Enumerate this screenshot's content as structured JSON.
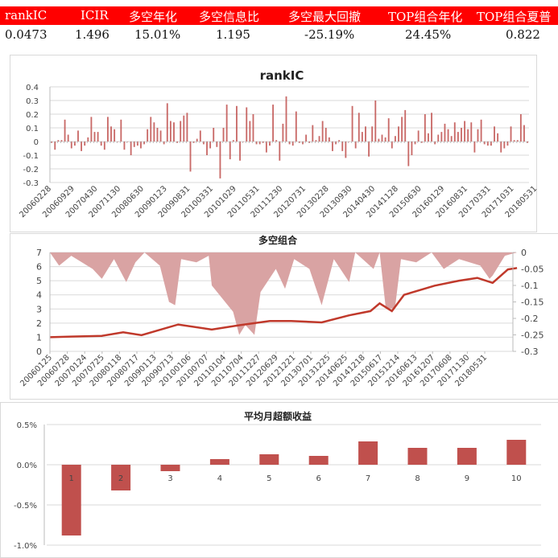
{
  "table": {
    "headers": [
      "rankIC",
      "ICIR",
      "多空年化",
      "多空信息比",
      "多空最大回撤",
      "TOP组合年化",
      "TOP组合夏普"
    ],
    "values": [
      "0.0473",
      "1.496",
      "15.01%",
      "1.195",
      "-25.19%",
      "24.45%",
      "0.822"
    ],
    "header_bg": "#ff0000"
  },
  "chart_data": [
    {
      "type": "bar",
      "title": "rankIC",
      "ylim": [
        -0.3,
        0.4
      ],
      "yticks": [
        "0.4",
        "0.3",
        "0.2",
        "0.1",
        "0",
        "-0.1",
        "-0.2",
        "-0.3"
      ],
      "grid": true,
      "color": "#c0504d",
      "xtick_labels": [
        "20060228",
        "20060929",
        "20070430",
        "20071130",
        "20080630",
        "20090123",
        "20090831",
        "20100331",
        "20101029",
        "20110531",
        "20111230",
        "20120731",
        "20130228",
        "20130930",
        "20140430",
        "20141128",
        "20150630",
        "20160129",
        "20160831",
        "20170331",
        "20171031",
        "20180531"
      ],
      "values": [
        -0.01,
        -0.06,
        0.01,
        0.01,
        0.16,
        0.05,
        -0.05,
        -0.03,
        0.08,
        -0.07,
        -0.03,
        0.03,
        0.18,
        0.07,
        0.07,
        -0.03,
        -0.06,
        0.18,
        0.11,
        0.09,
        0.0,
        0.16,
        -0.06,
        0.0,
        -0.1,
        -0.04,
        -0.03,
        -0.05,
        -0.02,
        0.09,
        0.18,
        0.14,
        0.1,
        0.08,
        -0.02,
        0.28,
        0.15,
        0.14,
        -0.01,
        0.15,
        0.19,
        0.21,
        -0.22,
        -0.01,
        0.02,
        0.08,
        -0.02,
        -0.1,
        -0.05,
        0.1,
        -0.04,
        -0.27,
        0.1,
        0.27,
        -0.13,
        0.01,
        0.26,
        -0.14,
        0.0,
        0.25,
        0.15,
        0.2,
        -0.02,
        -0.02,
        -0.01,
        -0.08,
        -0.03,
        0.27,
        0.01,
        -0.14,
        0.13,
        0.33,
        -0.02,
        -0.03,
        0.22,
        -0.01,
        -0.02,
        0.05,
        -0.01,
        0.12,
        0.01,
        0.04,
        0.15,
        0.1,
        0.03,
        -0.07,
        -0.02,
        0.01,
        -0.07,
        -0.12,
        0.0,
        0.26,
        -0.05,
        0.21,
        0.07,
        0.11,
        -0.11,
        0.11,
        0.3,
        0.02,
        0.05,
        0.03,
        0.17,
        -0.05,
        0.04,
        0.11,
        0.18,
        0.23,
        -0.18,
        -0.1,
        -0.02,
        0.08,
        -0.01,
        0.2,
        0.06,
        0.21,
        -0.02,
        0.05,
        0.07,
        0.13,
        0.09,
        0.04,
        0.14,
        0.07,
        0.1,
        0.15,
        0.09,
        0.14,
        -0.08,
        0.09,
        0.16,
        -0.02,
        -0.03,
        -0.03,
        0.11,
        0.06,
        -0.08,
        -0.05,
        -0.03,
        0.11,
        0.01,
        0.01,
        0.2,
        0.12,
        -0.01
      ]
    },
    {
      "type": "line",
      "title": "多空组合",
      "ylim_left": [
        0,
        7
      ],
      "yticks_left": [
        "7",
        "6",
        "5",
        "4",
        "3",
        "2",
        "1",
        "0"
      ],
      "ylim_right": [
        -0.3,
        0
      ],
      "yticks_right": [
        "0",
        "-0.05",
        "-0.1",
        "-0.15",
        "-0.2",
        "-0.25",
        "-0.3"
      ],
      "grid": true,
      "xtick_labels": [
        "20060125",
        "20060728",
        "20070124",
        "20070725",
        "20080118",
        "20080717",
        "20090113",
        "20090713",
        "20100106",
        "20100707",
        "20110104",
        "20110704",
        "20111227",
        "20120629",
        "20121221",
        "20130701",
        "20131225",
        "20140625",
        "20141218",
        "20150617",
        "20151214",
        "20160613",
        "20161207",
        "20170608",
        "20171130",
        "20180531"
      ],
      "series": [
        {
          "axis": "left",
          "kind": "line",
          "color": "#c0392b",
          "points": [
            [
              "2006-01",
              1.0
            ],
            [
              "2006-08",
              1.05
            ],
            [
              "2007-06",
              1.1
            ],
            [
              "2008-01",
              1.35
            ],
            [
              "2008-07",
              1.15
            ],
            [
              "2009-07",
              1.9
            ],
            [
              "2010-06",
              1.55
            ],
            [
              "2011-03",
              1.85
            ],
            [
              "2012-01",
              2.15
            ],
            [
              "2012-08",
              2.15
            ],
            [
              "2013-06",
              2.05
            ],
            [
              "2014-03",
              2.55
            ],
            [
              "2014-10",
              2.85
            ],
            [
              "2015-01",
              3.4
            ],
            [
              "2015-05",
              2.85
            ],
            [
              "2015-09",
              4.0
            ],
            [
              "2016-07",
              4.65
            ],
            [
              "2017-03",
              5.0
            ],
            [
              "2017-09",
              5.2
            ],
            [
              "2018-02",
              4.85
            ],
            [
              "2018-07",
              5.8
            ],
            [
              "2018-10",
              5.9
            ]
          ]
        },
        {
          "axis": "right",
          "kind": "area",
          "color": "#d9a3a3",
          "points": [
            [
              "2006-01",
              0
            ],
            [
              "2006-04",
              -0.04
            ],
            [
              "2006-08",
              -0.01
            ],
            [
              "2007-03",
              -0.05
            ],
            [
              "2007-06",
              -0.08
            ],
            [
              "2007-10",
              -0.02
            ],
            [
              "2008-02",
              -0.09
            ],
            [
              "2008-05",
              -0.03
            ],
            [
              "2008-08",
              0
            ],
            [
              "2009-01",
              -0.04
            ],
            [
              "2009-04",
              -0.15
            ],
            [
              "2009-06",
              -0.16
            ],
            [
              "2009-08",
              -0.02
            ],
            [
              "2010-01",
              -0.03
            ],
            [
              "2010-05",
              -0.01
            ],
            [
              "2010-06",
              -0.1
            ],
            [
              "2011-01",
              -0.18
            ],
            [
              "2011-03",
              -0.25
            ],
            [
              "2011-05",
              -0.22
            ],
            [
              "2011-08",
              -0.25
            ],
            [
              "2011-10",
              -0.12
            ],
            [
              "2012-03",
              -0.05
            ],
            [
              "2012-06",
              -0.11
            ],
            [
              "2012-09",
              -0.02
            ],
            [
              "2013-02",
              -0.05
            ],
            [
              "2013-06",
              -0.16
            ],
            [
              "2013-10",
              -0.02
            ],
            [
              "2014-03",
              -0.09
            ],
            [
              "2014-05",
              0
            ],
            [
              "2014-11",
              -0.05
            ],
            [
              "2015-01",
              0
            ],
            [
              "2015-03",
              -0.17
            ],
            [
              "2015-06",
              -0.17
            ],
            [
              "2015-08",
              -0.02
            ],
            [
              "2016-01",
              -0.03
            ],
            [
              "2016-06",
              0
            ],
            [
              "2016-10",
              -0.05
            ],
            [
              "2017-03",
              -0.02
            ],
            [
              "2017-10",
              -0.04
            ],
            [
              "2018-01",
              -0.08
            ],
            [
              "2018-02",
              -0.07
            ],
            [
              "2018-06",
              -0.01
            ],
            [
              "2018-10",
              0
            ]
          ]
        }
      ]
    },
    {
      "type": "bar",
      "title": "平均月超额收益",
      "categories": [
        "1",
        "2",
        "3",
        "4",
        "5",
        "6",
        "7",
        "8",
        "9",
        "10"
      ],
      "values": [
        -0.88,
        -0.32,
        -0.08,
        0.07,
        0.13,
        0.11,
        0.29,
        0.21,
        0.21,
        0.31
      ],
      "unit": "%",
      "ylim": [
        -1.0,
        0.5
      ],
      "yticks": [
        "0.5%",
        "0.0%",
        "-0.5%",
        "-1.0%"
      ],
      "grid": true,
      "color": "#c0504d"
    }
  ]
}
